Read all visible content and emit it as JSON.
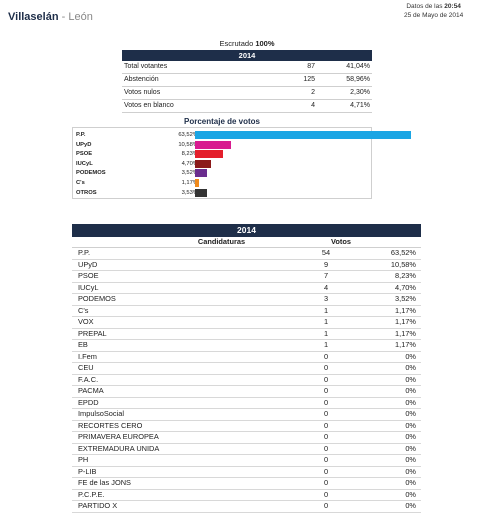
{
  "header": {
    "town": "Villaselán",
    "separator": " - ",
    "province": "León"
  },
  "update": {
    "prefix": "Datos de las ",
    "time": "20:54",
    "date": "25 de Mayo de 2014"
  },
  "summary": {
    "caption_prefix": "Escrutado ",
    "caption_value": "100%",
    "year": "2014",
    "rows": [
      {
        "label": "Total votantes",
        "num": "87",
        "pct": "41,04%"
      },
      {
        "label": "Abstención",
        "num": "125",
        "pct": "58,96%"
      },
      {
        "label": "Votos nulos",
        "num": "2",
        "pct": "2,30%"
      },
      {
        "label": "Votos en blanco",
        "num": "4",
        "pct": "4,71%"
      }
    ]
  },
  "chart_data": {
    "type": "bar",
    "title": "Porcentaje de votos",
    "categories": [
      "P.P.",
      "UPyD",
      "PSOE",
      "IUCyL",
      "PODEMOS",
      "C's",
      "OTROS"
    ],
    "labels": [
      "63,52%",
      "10,58%",
      "8,23%",
      "4,70%",
      "3,52%",
      "1,17%",
      "3,53%"
    ],
    "values": [
      63.52,
      10.58,
      8.23,
      4.7,
      3.52,
      1.17,
      3.53
    ],
    "colors": [
      "#1aa5e4",
      "#d81b8f",
      "#e41f2b",
      "#8b1a1a",
      "#6a2d8e",
      "#f08a1c",
      "#333333"
    ],
    "xlim": [
      0,
      100
    ]
  },
  "table": {
    "year": "2014",
    "col_candidaturas": "Candidaturas",
    "col_votos": "Votos",
    "rows": [
      {
        "name": "P.P.",
        "votes": "54",
        "pct": "63,52%"
      },
      {
        "name": "UPyD",
        "votes": "9",
        "pct": "10,58%"
      },
      {
        "name": "PSOE",
        "votes": "7",
        "pct": "8,23%"
      },
      {
        "name": "IUCyL",
        "votes": "4",
        "pct": "4,70%"
      },
      {
        "name": "PODEMOS",
        "votes": "3",
        "pct": "3,52%"
      },
      {
        "name": "C's",
        "votes": "1",
        "pct": "1,17%"
      },
      {
        "name": "VOX",
        "votes": "1",
        "pct": "1,17%"
      },
      {
        "name": "PREPAL",
        "votes": "1",
        "pct": "1,17%"
      },
      {
        "name": "EB",
        "votes": "1",
        "pct": "1,17%"
      },
      {
        "name": "I.Fem",
        "votes": "0",
        "pct": "0%"
      },
      {
        "name": "CEU",
        "votes": "0",
        "pct": "0%"
      },
      {
        "name": "F.A.C.",
        "votes": "0",
        "pct": "0%"
      },
      {
        "name": "PACMA",
        "votes": "0",
        "pct": "0%"
      },
      {
        "name": "EPDD",
        "votes": "0",
        "pct": "0%"
      },
      {
        "name": "ImpulsoSocial",
        "votes": "0",
        "pct": "0%"
      },
      {
        "name": "RECORTES CERO",
        "votes": "0",
        "pct": "0%"
      },
      {
        "name": "PRIMAVERA EUROPEA",
        "votes": "0",
        "pct": "0%"
      },
      {
        "name": "EXTREMADURA UNIDA",
        "votes": "0",
        "pct": "0%"
      },
      {
        "name": "PH",
        "votes": "0",
        "pct": "0%"
      },
      {
        "name": "P-LIB",
        "votes": "0",
        "pct": "0%"
      },
      {
        "name": "FE de las JONS",
        "votes": "0",
        "pct": "0%"
      },
      {
        "name": "P.C.P.E.",
        "votes": "0",
        "pct": "0%"
      },
      {
        "name": "PARTIDO X",
        "votes": "0",
        "pct": "0%"
      }
    ]
  }
}
